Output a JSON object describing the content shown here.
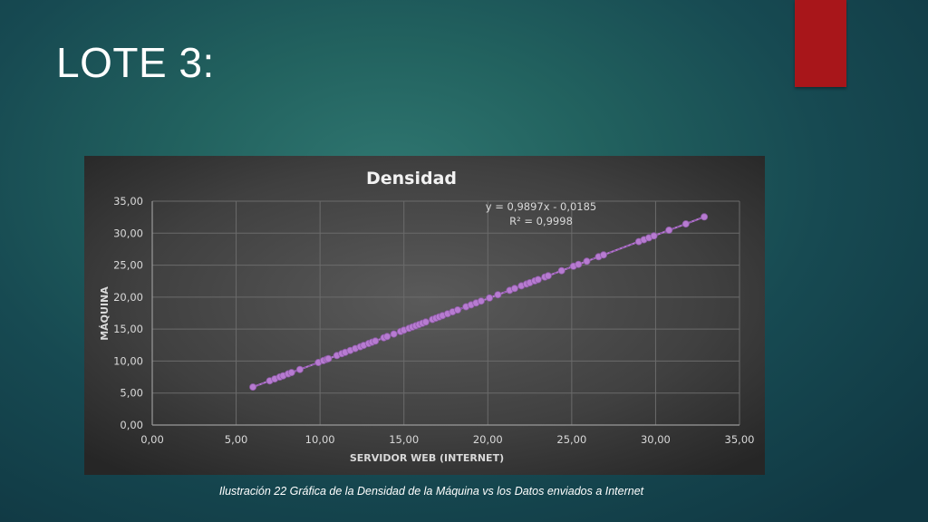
{
  "slide": {
    "title": "LOTE 3:",
    "caption": "Ilustración 22 Gráfica de la Densidad de la Máquina vs los Datos enviados a Internet"
  },
  "colors": {
    "accent": "#a8161a",
    "series": "#b77bd1",
    "trendline": "#8a4fa8"
  },
  "chart_data": {
    "type": "scatter",
    "title": "Densidad",
    "xlabel": "SERVIDOR WEB (INTERNET)",
    "ylabel": "MÁQUINA",
    "xlim": [
      0,
      35
    ],
    "ylim": [
      0,
      35
    ],
    "xticks": [
      "0,00",
      "5,00",
      "10,00",
      "15,00",
      "20,00",
      "25,00",
      "30,00",
      "35,00"
    ],
    "yticks": [
      "0,00",
      "5,00",
      "10,00",
      "15,00",
      "20,00",
      "25,00",
      "30,00",
      "35,00"
    ],
    "grid": true,
    "legend": "none",
    "trendline": {
      "equation": "y = 0,9897x - 0,0185",
      "r2": "R² = 0,9998",
      "slope": 0.9897,
      "intercept": -0.0185
    },
    "series": [
      {
        "x": [
          6.0,
          7.0,
          7.3,
          7.6,
          7.8,
          8.1,
          8.3,
          8.8,
          9.9,
          10.2,
          10.4,
          10.5,
          11.0,
          11.3,
          11.5,
          11.8,
          12.1,
          12.4,
          12.6,
          12.9,
          13.1,
          13.3,
          13.8,
          14.0,
          14.4,
          14.8,
          15.0,
          15.3,
          15.5,
          15.7,
          15.9,
          16.1,
          16.3,
          16.7,
          16.9,
          17.1,
          17.3,
          17.6,
          17.9,
          18.2,
          18.7,
          19.0,
          19.3,
          19.6,
          20.1,
          20.6,
          21.3,
          21.6,
          22.0,
          22.3,
          22.5,
          22.8,
          23.0,
          23.4,
          23.6,
          24.4,
          25.1,
          25.4,
          25.9,
          26.6,
          26.9,
          29.0,
          29.3,
          29.6,
          29.9,
          30.8,
          31.8,
          32.9
        ],
        "y": [
          5.94,
          6.91,
          7.21,
          7.51,
          7.7,
          8.0,
          8.2,
          8.69,
          9.78,
          10.08,
          10.27,
          10.37,
          10.87,
          11.17,
          11.36,
          11.66,
          11.96,
          12.25,
          12.45,
          12.75,
          12.95,
          13.14,
          13.64,
          13.84,
          14.23,
          14.63,
          14.83,
          15.12,
          15.32,
          15.52,
          15.72,
          15.92,
          16.11,
          16.51,
          16.71,
          16.91,
          17.1,
          17.4,
          17.7,
          17.99,
          18.49,
          18.79,
          19.08,
          19.38,
          19.87,
          20.37,
          21.06,
          21.36,
          21.76,
          22.05,
          22.25,
          22.55,
          22.74,
          23.14,
          23.34,
          24.13,
          24.82,
          25.12,
          25.61,
          26.31,
          26.6,
          28.68,
          28.98,
          29.28,
          29.57,
          30.46,
          31.45,
          32.55
        ]
      }
    ]
  }
}
